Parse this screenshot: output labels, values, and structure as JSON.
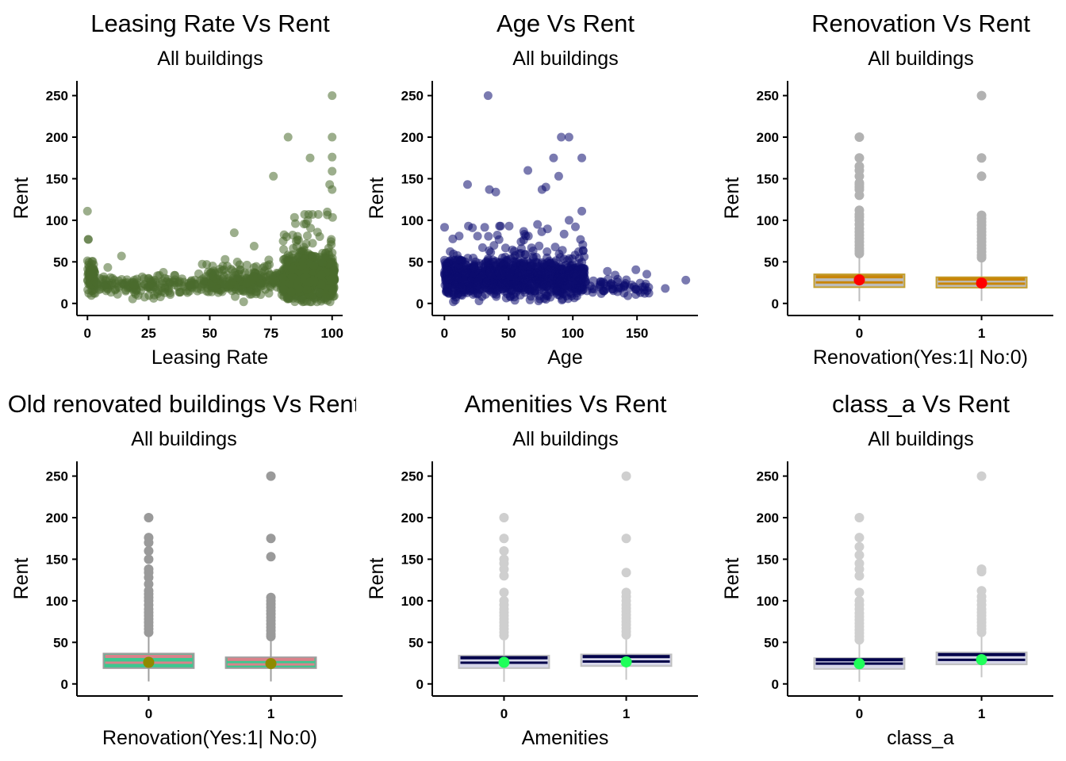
{
  "chart_data": [
    {
      "type": "scatter",
      "title": "Leasing Rate Vs Rent",
      "subtitle": "All buildings",
      "xlabel": "Leasing Rate",
      "ylabel": "Rent",
      "xlim": [
        -3,
        103
      ],
      "ylim": [
        -5,
        262
      ],
      "x_ticks": [
        0,
        25,
        50,
        75,
        100
      ],
      "y_ticks": [
        0,
        50,
        100,
        150,
        200,
        250
      ],
      "point_color": "#4a6b2e",
      "point_opacity": 0.55,
      "highlight_points": [
        {
          "x": 0,
          "y": 111
        },
        {
          "x": 60,
          "y": 85
        },
        {
          "x": 82,
          "y": 200
        },
        {
          "x": 91,
          "y": 175
        },
        {
          "x": 100,
          "y": 250
        },
        {
          "x": 100,
          "y": 200
        },
        {
          "x": 100,
          "y": 176
        },
        {
          "x": 100,
          "y": 159
        },
        {
          "x": 99,
          "y": 143
        },
        {
          "x": 100,
          "y": 137
        },
        {
          "x": 76,
          "y": 153
        },
        {
          "x": 98,
          "y": 110
        },
        {
          "x": 80,
          "y": 75
        },
        {
          "x": 85,
          "y": 96
        }
      ],
      "clusters": [
        {
          "x_min": 0,
          "x_max": 3,
          "y_center": 28,
          "y_spread": 14,
          "count": 80
        },
        {
          "x_min": 3,
          "x_max": 70,
          "y_center": 22,
          "y_spread": 10,
          "count": 260
        },
        {
          "x_min": 50,
          "x_max": 85,
          "y_center": 28,
          "y_spread": 14,
          "count": 220
        },
        {
          "x_min": 80,
          "x_max": 101,
          "y_center": 30,
          "y_spread": 22,
          "count": 900
        }
      ]
    },
    {
      "type": "scatter",
      "title": "Age Vs Rent",
      "subtitle": "All buildings",
      "xlabel": "Age",
      "ylabel": "Rent",
      "xlim": [
        -7,
        195
      ],
      "ylim": [
        -5,
        262
      ],
      "x_ticks": [
        0,
        50,
        100,
        150
      ],
      "y_ticks": [
        0,
        50,
        100,
        150,
        200,
        250
      ],
      "point_color": "#0c0c70",
      "point_opacity": 0.55,
      "highlight_points": [
        {
          "x": 34,
          "y": 250
        },
        {
          "x": 91,
          "y": 200
        },
        {
          "x": 97,
          "y": 200
        },
        {
          "x": 107,
          "y": 175
        },
        {
          "x": 85,
          "y": 175
        },
        {
          "x": 65,
          "y": 160
        },
        {
          "x": 89,
          "y": 153
        },
        {
          "x": 18,
          "y": 143
        },
        {
          "x": 35,
          "y": 137
        },
        {
          "x": 40,
          "y": 134
        },
        {
          "x": 76,
          "y": 137
        },
        {
          "x": 79,
          "y": 140
        },
        {
          "x": 107,
          "y": 111
        },
        {
          "x": 188,
          "y": 28
        },
        {
          "x": 172,
          "y": 18
        },
        {
          "x": 156,
          "y": 12
        },
        {
          "x": 140,
          "y": 20
        }
      ],
      "clusters": [
        {
          "x_min": 0,
          "x_max": 60,
          "y_center": 30,
          "y_spread": 18,
          "count": 700
        },
        {
          "x_min": 60,
          "x_max": 110,
          "y_center": 30,
          "y_spread": 20,
          "count": 450
        },
        {
          "x_min": 110,
          "x_max": 160,
          "y_center": 20,
          "y_spread": 8,
          "count": 60
        }
      ]
    },
    {
      "type": "box",
      "title": "Renovation Vs Rent",
      "subtitle": "All buildings",
      "xlabel": "Renovation(Yes:1| No:0)",
      "ylabel": "Rent",
      "ylim": [
        -5,
        262
      ],
      "y_ticks": [
        0,
        50,
        100,
        150,
        200,
        250
      ],
      "categories": [
        "0",
        "1"
      ],
      "box_fill": "#bcbcbc",
      "box_stroke": "#c4a030",
      "inner_line_color": "#c8860a",
      "whisker_color": "#bdbdbd",
      "outlier_color": "#b2b2b2",
      "mean_color": "#ff0000",
      "boxes": [
        {
          "q1": 19.5,
          "median": 25.3,
          "q3": 35,
          "whisker_low": 2.5,
          "whisker_high": 58,
          "mean": 28.3,
          "outliers": [
            60,
            63,
            66,
            70,
            74,
            78,
            82,
            86,
            90,
            95,
            100,
            104,
            107,
            112,
            130,
            137,
            140,
            143,
            145,
            153,
            160,
            165,
            175,
            200
          ]
        },
        {
          "q1": 19,
          "median": 23.7,
          "q3": 31.5,
          "whisker_low": 3,
          "whisker_high": 53,
          "mean": 24.5,
          "outliers": [
            55,
            58,
            62,
            66,
            70,
            74,
            78,
            82,
            86,
            90,
            94,
            98,
            102,
            106,
            153,
            175,
            250
          ]
        }
      ]
    },
    {
      "type": "box",
      "title": "Old renovated buildings Vs Rent",
      "subtitle": "All buildings",
      "xlabel": "Renovation(Yes:1| No:0)",
      "ylabel": "Rent",
      "ylim": [
        -5,
        262
      ],
      "y_ticks": [
        0,
        50,
        100,
        150,
        200,
        250
      ],
      "categories": [
        "0",
        "1"
      ],
      "box_fill": "#3dc890",
      "box_stroke": "#9e9e9e",
      "inner_line_color": "#d9828a",
      "whisker_color": "#9e9e9e",
      "outlier_color": "#9a9a9a",
      "mean_color": "#8f8a00",
      "boxes": [
        {
          "q1": 19,
          "median": 25.5,
          "q3": 36.5,
          "whisker_low": 3,
          "whisker_high": 60,
          "mean": 26,
          "outliers": [
            62,
            66,
            70,
            74,
            78,
            82,
            86,
            90,
            95,
            100,
            104,
            108,
            112,
            120,
            128,
            134,
            138,
            150,
            160,
            170,
            176,
            200
          ]
        },
        {
          "q1": 19,
          "median": 23.5,
          "q3": 32,
          "whisker_low": 3,
          "whisker_high": 55,
          "mean": 24.5,
          "outliers": [
            57,
            60,
            64,
            68,
            72,
            76,
            80,
            84,
            88,
            92,
            96,
            100,
            104,
            153,
            175,
            250
          ]
        }
      ]
    },
    {
      "type": "box",
      "title": "Amenities Vs Rent",
      "subtitle": "All buildings",
      "xlabel": "Amenities",
      "ylabel": "Rent",
      "ylim": [
        -5,
        262
      ],
      "y_ticks": [
        0,
        50,
        100,
        150,
        200,
        250
      ],
      "categories": [
        "0",
        "1"
      ],
      "box_fill": "#d6d6e8",
      "box_stroke": "#c0c0c0",
      "inner_line_color": "#00004a",
      "whisker_color": "#c6c6c6",
      "outlier_color": "#cfcfcf",
      "mean_color": "#1fff5a",
      "boxes": [
        {
          "q1": 19,
          "median": 25.5,
          "q3": 34,
          "whisker_low": 2.5,
          "whisker_high": 55,
          "mean": 26,
          "outliers": [
            58,
            62,
            66,
            70,
            74,
            78,
            82,
            86,
            90,
            95,
            100,
            110,
            130,
            138,
            145,
            150,
            160,
            175,
            200
          ]
        },
        {
          "q1": 21.5,
          "median": 27,
          "q3": 35.5,
          "whisker_low": 5,
          "whisker_high": 57,
          "mean": 26.5,
          "outliers": [
            59,
            63,
            67,
            71,
            75,
            79,
            83,
            87,
            91,
            95,
            100,
            105,
            110,
            134,
            175,
            250
          ]
        }
      ]
    },
    {
      "type": "box",
      "title": "class_a Vs Rent",
      "subtitle": "All buildings",
      "xlabel": "class_a",
      "ylabel": "Rent",
      "ylim": [
        -5,
        262
      ],
      "y_ticks": [
        0,
        50,
        100,
        150,
        200,
        250
      ],
      "categories": [
        "0",
        "1"
      ],
      "box_fill": "#d6d6e8",
      "box_stroke": "#c0c0c0",
      "inner_line_color": "#00004a",
      "whisker_color": "#c6c6c6",
      "outlier_color": "#cfcfcf",
      "mean_color": "#1fff5a",
      "boxes": [
        {
          "q1": 18,
          "median": 24.5,
          "q3": 31,
          "whisker_low": 2.5,
          "whisker_high": 50,
          "mean": 24.3,
          "outliers": [
            53,
            57,
            61,
            65,
            69,
            73,
            77,
            81,
            85,
            90,
            95,
            100,
            110,
            130,
            138,
            145,
            155,
            165,
            176,
            200
          ]
        },
        {
          "q1": 23.5,
          "median": 29,
          "q3": 38,
          "whisker_low": 8,
          "whisker_high": 60,
          "mean": 29.2,
          "outliers": [
            62,
            66,
            70,
            74,
            78,
            82,
            86,
            90,
            95,
            100,
            105,
            112,
            135,
            138,
            250
          ]
        }
      ]
    }
  ]
}
